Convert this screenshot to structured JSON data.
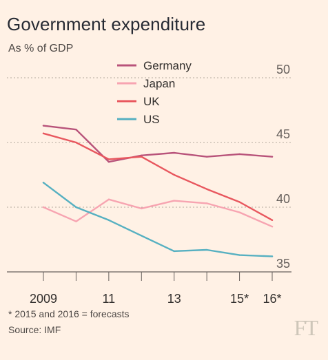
{
  "header": {
    "title": "Government expenditure",
    "subtitle": "As % of GDP"
  },
  "footer": {
    "footnote": "* 2015 and 2016 = forecasts",
    "source": "Source: IMF",
    "logo_text": "FT"
  },
  "chart_data": {
    "type": "line",
    "title": "Government expenditure",
    "subtitle": "As % of GDP",
    "x": [
      "2009",
      "2010",
      "2011",
      "2012",
      "2013",
      "2014",
      "2015",
      "2016"
    ],
    "x_tick_labels": [
      "2009",
      "",
      "11",
      "",
      "13",
      "",
      "15*",
      "16*"
    ],
    "ylim": [
      35,
      50
    ],
    "y_ticks": [
      35,
      40,
      45,
      50
    ],
    "y_axis_side": "right",
    "grid": true,
    "legend_position": "top-center",
    "series": [
      {
        "name": "Germany",
        "color": "#b8537a",
        "values": [
          46.3,
          46.0,
          43.5,
          44.0,
          44.2,
          43.9,
          44.1,
          43.9
        ]
      },
      {
        "name": "Japan",
        "color": "#f7a4b1",
        "values": [
          40.0,
          38.9,
          40.6,
          39.9,
          40.5,
          40.3,
          39.6,
          38.5
        ]
      },
      {
        "name": "UK",
        "color": "#e8575e",
        "values": [
          45.7,
          45.0,
          43.7,
          43.9,
          42.5,
          41.4,
          40.4,
          39.0
        ]
      },
      {
        "name": "US",
        "color": "#56b0c1",
        "values": [
          41.9,
          40.0,
          39.0,
          37.8,
          36.6,
          36.7,
          36.3,
          36.2
        ]
      }
    ]
  }
}
